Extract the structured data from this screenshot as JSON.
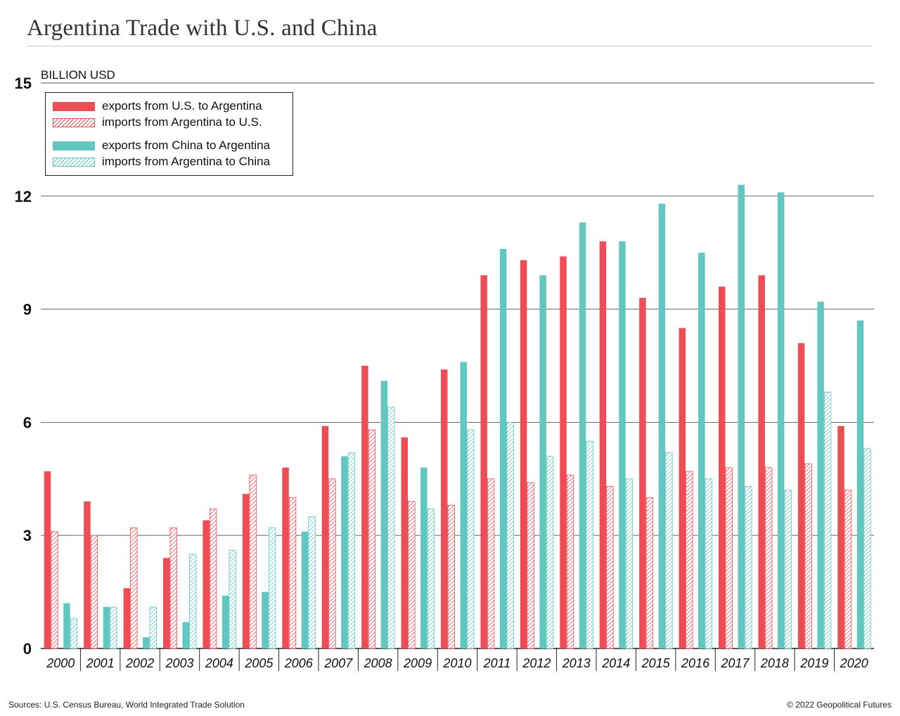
{
  "header": {
    "title": "Argentina Trade with U.S. and China",
    "unit_label": "BILLION USD"
  },
  "footer": {
    "source": "Sources: U.S. Census Bureau, World Integrated Trade Solution",
    "copyright": "© 2022 Geopolitical Futures"
  },
  "colors": {
    "us": "#ee4d55",
    "china": "#62c7c1"
  },
  "chart_data": {
    "type": "bar",
    "title": "Argentina Trade with U.S. and China",
    "ylabel": "BILLION USD",
    "xlabel": "",
    "ylim": [
      0,
      15
    ],
    "yticks": [
      0,
      3,
      6,
      9,
      12,
      15
    ],
    "grid": true,
    "legend_position": "top-left",
    "categories": [
      "2000",
      "2001",
      "2002",
      "2003",
      "2004",
      "2005",
      "2006",
      "2007",
      "2008",
      "2009",
      "2010",
      "2011",
      "2012",
      "2013",
      "2014",
      "2015",
      "2016",
      "2017",
      "2018",
      "2019",
      "2020"
    ],
    "series": [
      {
        "name": "exports from U.S. to Argentina",
        "style": "solid",
        "color": "#ee4d55",
        "values": [
          4.7,
          3.9,
          1.6,
          2.4,
          3.4,
          4.1,
          4.8,
          5.9,
          7.5,
          5.6,
          7.4,
          9.9,
          10.3,
          10.4,
          10.8,
          9.3,
          8.5,
          9.6,
          9.9,
          8.1,
          5.9
        ]
      },
      {
        "name": "imports from Argentina to U.S.",
        "style": "hatch",
        "color": "#ee4d55",
        "values": [
          3.1,
          3.0,
          3.2,
          3.2,
          3.7,
          4.6,
          4.0,
          4.5,
          5.8,
          3.9,
          3.8,
          4.5,
          4.4,
          4.6,
          4.3,
          4.0,
          4.7,
          4.8,
          4.8,
          4.9,
          4.2
        ]
      },
      {
        "name": "exports from China to Argentina",
        "style": "solid",
        "color": "#62c7c1",
        "values": [
          1.2,
          1.1,
          0.3,
          0.7,
          1.4,
          1.5,
          3.1,
          5.1,
          7.1,
          4.8,
          7.6,
          10.6,
          9.9,
          11.3,
          10.8,
          11.8,
          10.5,
          12.3,
          12.1,
          9.2,
          8.7
        ]
      },
      {
        "name": "imports from Argentina to China",
        "style": "hatch",
        "color": "#62c7c1",
        "values": [
          0.8,
          1.1,
          1.1,
          2.5,
          2.6,
          3.2,
          3.5,
          5.2,
          6.4,
          3.7,
          5.8,
          6.0,
          5.1,
          5.5,
          4.5,
          5.2,
          4.5,
          4.3,
          4.2,
          6.8,
          5.3
        ]
      }
    ]
  }
}
